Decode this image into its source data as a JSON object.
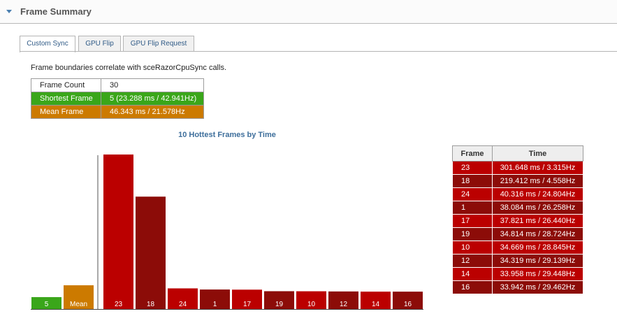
{
  "section": {
    "title": "Frame Summary"
  },
  "tabs": [
    {
      "label": "Custom Sync",
      "active": true
    },
    {
      "label": "GPU Flip",
      "active": false
    },
    {
      "label": "GPU Flip Request",
      "active": false
    }
  ],
  "description": "Frame boundaries correlate with sceRazorCpuSync calls.",
  "summary": {
    "frame_count_label": "Frame Count",
    "frame_count_value": "30",
    "shortest_label": "Shortest Frame",
    "shortest_value": "5 (23.288 ms / 42.941Hz)",
    "mean_label": "Mean Frame",
    "mean_value": "46.343 ms / 21.578Hz"
  },
  "colors": {
    "green": "#3aa61a",
    "orange": "#cc7a00",
    "red_bright": "#bb0000",
    "red_dark": "#8c0c08"
  },
  "chart_data": {
    "type": "bar",
    "title": "10 Hottest Frames by Time",
    "xlabel": "",
    "ylabel": "",
    "ylim": [
      0,
      301.648
    ],
    "categories": [
      "5",
      "Mean",
      "23",
      "18",
      "24",
      "1",
      "17",
      "19",
      "10",
      "12",
      "14",
      "16"
    ],
    "values": [
      23.288,
      46.343,
      301.648,
      219.412,
      40.316,
      38.084,
      37.821,
      34.814,
      34.669,
      34.319,
      33.958,
      33.942
    ],
    "bar_colors": [
      "#3aa61a",
      "#cc7a00",
      "#bb0000",
      "#8c0c08",
      "#bb0000",
      "#8c0c08",
      "#bb0000",
      "#8c0c08",
      "#bb0000",
      "#8c0c08",
      "#bb0000",
      "#8c0c08"
    ]
  },
  "hottest_table": {
    "headers": [
      "Frame",
      "Time"
    ],
    "rows": [
      {
        "frame": "23",
        "time": "301.648 ms / 3.315Hz"
      },
      {
        "frame": "18",
        "time": "219.412 ms / 4.558Hz"
      },
      {
        "frame": "24",
        "time": "40.316 ms / 24.804Hz"
      },
      {
        "frame": "1",
        "time": "38.084 ms / 26.258Hz"
      },
      {
        "frame": "17",
        "time": "37.821 ms / 26.440Hz"
      },
      {
        "frame": "19",
        "time": "34.814 ms / 28.724Hz"
      },
      {
        "frame": "10",
        "time": "34.669 ms / 28.845Hz"
      },
      {
        "frame": "12",
        "time": "34.319 ms / 29.139Hz"
      },
      {
        "frame": "14",
        "time": "33.958 ms / 29.448Hz"
      },
      {
        "frame": "16",
        "time": "33.942 ms / 29.462Hz"
      }
    ]
  }
}
